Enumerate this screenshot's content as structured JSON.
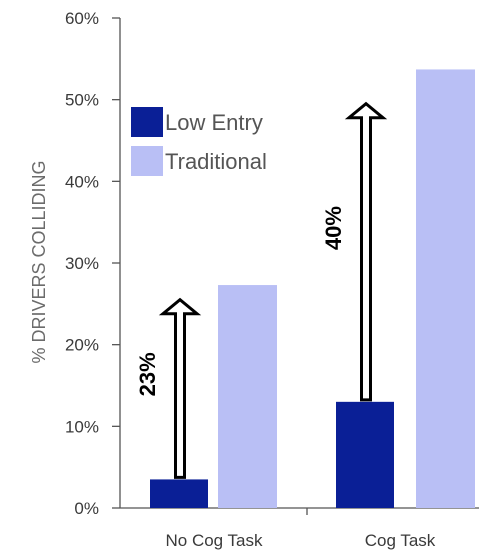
{
  "chart_data": {
    "type": "bar",
    "ylabel": "% DRIVERS COLLIDING",
    "xlabel": "",
    "title": "",
    "categories": [
      "No Cog Task",
      "Cog Task"
    ],
    "series": [
      {
        "name": "Low Entry",
        "values": [
          3.5,
          13
        ],
        "color": "#0a1f96"
      },
      {
        "name": "Traditional",
        "values": [
          27.3,
          53.7
        ],
        "color": "#b9bff5"
      }
    ],
    "ylim": [
      0,
      60
    ],
    "yticks": [
      0,
      10,
      20,
      30,
      40,
      50,
      60
    ],
    "ytick_labels": [
      "0%",
      "10%",
      "20%",
      "30%",
      "40%",
      "50%",
      "60%"
    ],
    "grid": false,
    "legend": {
      "position": "top-left",
      "entries": [
        "Low Entry",
        "Traditional"
      ]
    },
    "annotations": [
      {
        "label": "23%",
        "category": "No Cog Task",
        "from": 3.5,
        "to": 25.5
      },
      {
        "label": "40%",
        "category": "Cog Task",
        "from": 13,
        "to": 49.5
      }
    ]
  }
}
